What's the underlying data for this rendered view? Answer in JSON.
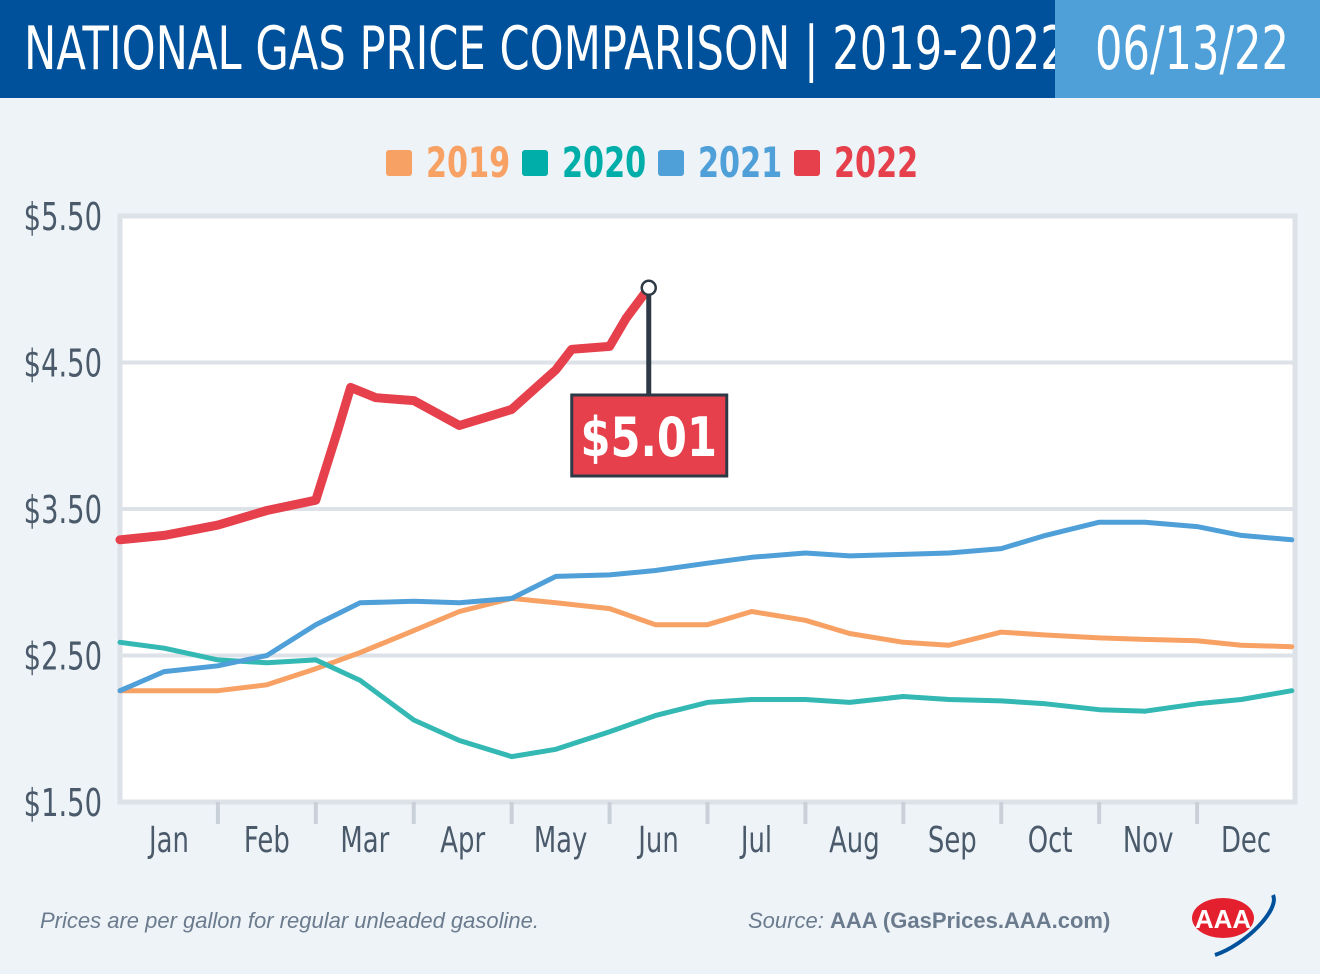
{
  "header": {
    "title": "NATIONAL GAS PRICE COMPARISON | 2019-2022",
    "date": "06/13/22"
  },
  "footer": {
    "note": "Prices are per gallon for regular unleaded gasoline.",
    "source_prefix": "Source:",
    "source": "AAA (GasPrices.AAA.com)",
    "logo_text": "AAA"
  },
  "chart_data": {
    "type": "line",
    "title": "NATIONAL GAS PRICE COMPARISON | 2019-2022",
    "ylim": [
      1.5,
      5.5
    ],
    "yticks": [
      1.5,
      2.5,
      3.5,
      4.5,
      5.5
    ],
    "ytick_labels": [
      "$1.50",
      "$2.50",
      "$3.50",
      "$4.50",
      "$5.50"
    ],
    "categories": [
      "Jan",
      "Feb",
      "Mar",
      "Apr",
      "May",
      "Jun",
      "Jul",
      "Aug",
      "Sep",
      "Oct",
      "Nov",
      "Dec"
    ],
    "grid": true,
    "legend_placement": "top",
    "annotation": {
      "label": "$5.01",
      "date": "06-13",
      "value": 5.01,
      "series": "2022"
    },
    "series": [
      {
        "name": "2019",
        "color": "#f7a164",
        "points": [
          [
            "01-01",
            2.26
          ],
          [
            "01-15",
            2.26
          ],
          [
            "02-01",
            2.26
          ],
          [
            "02-15",
            2.3
          ],
          [
            "03-01",
            2.41
          ],
          [
            "03-15",
            2.52
          ],
          [
            "04-01",
            2.67
          ],
          [
            "04-15",
            2.8
          ],
          [
            "05-01",
            2.89
          ],
          [
            "05-15",
            2.86
          ],
          [
            "06-01",
            2.82
          ],
          [
            "06-15",
            2.71
          ],
          [
            "07-01",
            2.71
          ],
          [
            "07-15",
            2.8
          ],
          [
            "08-01",
            2.74
          ],
          [
            "08-15",
            2.65
          ],
          [
            "09-01",
            2.59
          ],
          [
            "09-15",
            2.57
          ],
          [
            "10-01",
            2.66
          ],
          [
            "10-15",
            2.64
          ],
          [
            "11-01",
            2.62
          ],
          [
            "11-15",
            2.61
          ],
          [
            "12-01",
            2.6
          ],
          [
            "12-15",
            2.57
          ],
          [
            "12-31",
            2.56
          ]
        ]
      },
      {
        "name": "2020",
        "color": "#33b8b4",
        "points": [
          [
            "01-01",
            2.59
          ],
          [
            "01-15",
            2.55
          ],
          [
            "02-01",
            2.47
          ],
          [
            "02-15",
            2.45
          ],
          [
            "03-01",
            2.47
          ],
          [
            "03-15",
            2.33
          ],
          [
            "04-01",
            2.06
          ],
          [
            "04-15",
            1.92
          ],
          [
            "05-01",
            1.81
          ],
          [
            "05-15",
            1.86
          ],
          [
            "06-01",
            1.98
          ],
          [
            "06-15",
            2.09
          ],
          [
            "07-01",
            2.18
          ],
          [
            "07-15",
            2.2
          ],
          [
            "08-01",
            2.2
          ],
          [
            "08-15",
            2.18
          ],
          [
            "09-01",
            2.22
          ],
          [
            "09-15",
            2.2
          ],
          [
            "10-01",
            2.19
          ],
          [
            "10-15",
            2.17
          ],
          [
            "11-01",
            2.13
          ],
          [
            "11-15",
            2.12
          ],
          [
            "12-01",
            2.17
          ],
          [
            "12-15",
            2.2
          ],
          [
            "12-31",
            2.26
          ]
        ]
      },
      {
        "name": "2021",
        "color": "#4f9fd8",
        "points": [
          [
            "01-01",
            2.26
          ],
          [
            "01-15",
            2.39
          ],
          [
            "02-01",
            2.43
          ],
          [
            "02-15",
            2.5
          ],
          [
            "03-01",
            2.71
          ],
          [
            "03-15",
            2.86
          ],
          [
            "04-01",
            2.87
          ],
          [
            "04-15",
            2.86
          ],
          [
            "05-01",
            2.89
          ],
          [
            "05-15",
            3.04
          ],
          [
            "06-01",
            3.05
          ],
          [
            "06-15",
            3.08
          ],
          [
            "07-01",
            3.13
          ],
          [
            "07-15",
            3.17
          ],
          [
            "08-01",
            3.2
          ],
          [
            "08-15",
            3.18
          ],
          [
            "09-01",
            3.19
          ],
          [
            "09-15",
            3.2
          ],
          [
            "10-01",
            3.23
          ],
          [
            "10-15",
            3.32
          ],
          [
            "11-01",
            3.41
          ],
          [
            "11-15",
            3.41
          ],
          [
            "12-01",
            3.38
          ],
          [
            "12-15",
            3.32
          ],
          [
            "12-31",
            3.29
          ]
        ]
      },
      {
        "name": "2022",
        "color": "#e5404b",
        "points": [
          [
            "01-01",
            3.29
          ],
          [
            "01-15",
            3.32
          ],
          [
            "02-01",
            3.39
          ],
          [
            "02-15",
            3.49
          ],
          [
            "03-01",
            3.56
          ],
          [
            "03-08",
            4.04
          ],
          [
            "03-12",
            4.33
          ],
          [
            "03-20",
            4.26
          ],
          [
            "04-01",
            4.24
          ],
          [
            "04-15",
            4.07
          ],
          [
            "05-01",
            4.18
          ],
          [
            "05-15",
            4.45
          ],
          [
            "05-20",
            4.59
          ],
          [
            "06-01",
            4.61
          ],
          [
            "06-06",
            4.8
          ],
          [
            "06-13",
            5.01
          ]
        ]
      }
    ]
  }
}
